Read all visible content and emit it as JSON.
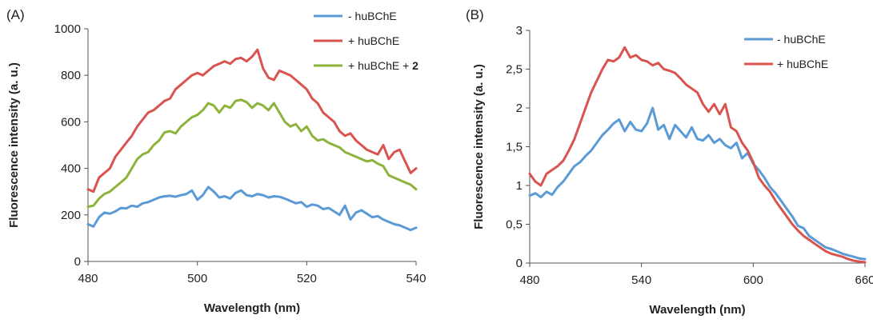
{
  "chart_data": [
    {
      "type": "line",
      "panel_label": "(A)",
      "xlabel": "Wavelength (nm)",
      "ylabel": "Fluorescence intensity (a. u.)",
      "xlim": [
        480,
        540
      ],
      "ylim": [
        0,
        1000
      ],
      "x_ticks": [
        "480",
        "500",
        "520",
        "540"
      ],
      "y_ticks": [
        "0",
        "200",
        "400",
        "600",
        "800",
        "1000"
      ],
      "legend_position": "top-right",
      "series": [
        {
          "name": "- huBChE",
          "color": "#5b9bd5",
          "x": [
            480,
            481,
            482,
            483,
            484,
            485,
            486,
            487,
            488,
            489,
            490,
            491,
            492,
            493,
            494,
            495,
            496,
            497,
            498,
            499,
            500,
            501,
            502,
            503,
            504,
            505,
            506,
            507,
            508,
            509,
            510,
            511,
            512,
            513,
            514,
            515,
            516,
            517,
            518,
            519,
            520,
            521,
            522,
            523,
            524,
            525,
            526,
            527,
            528,
            529,
            530,
            531,
            532,
            533,
            534,
            535,
            536,
            537,
            538,
            539,
            540
          ],
          "y": [
            160,
            150,
            190,
            210,
            205,
            215,
            230,
            228,
            240,
            235,
            250,
            255,
            265,
            275,
            280,
            282,
            278,
            285,
            290,
            305,
            265,
            285,
            320,
            300,
            275,
            280,
            270,
            295,
            305,
            285,
            280,
            290,
            285,
            275,
            280,
            278,
            270,
            260,
            250,
            255,
            235,
            245,
            240,
            225,
            230,
            215,
            200,
            240,
            180,
            210,
            220,
            205,
            190,
            195,
            180,
            170,
            160,
            155,
            145,
            135,
            145
          ]
        },
        {
          "name": "+ huBChE",
          "color": "#d9534f",
          "x": [
            480,
            481,
            482,
            483,
            484,
            485,
            486,
            487,
            488,
            489,
            490,
            491,
            492,
            493,
            494,
            495,
            496,
            497,
            498,
            499,
            500,
            501,
            502,
            503,
            504,
            505,
            506,
            507,
            508,
            509,
            510,
            511,
            512,
            513,
            514,
            515,
            516,
            517,
            518,
            519,
            520,
            521,
            522,
            523,
            524,
            525,
            526,
            527,
            528,
            529,
            530,
            531,
            532,
            533,
            534,
            535,
            536,
            537,
            538,
            539,
            540
          ],
          "y": [
            310,
            300,
            360,
            380,
            400,
            450,
            480,
            510,
            540,
            580,
            610,
            640,
            650,
            670,
            690,
            700,
            740,
            760,
            780,
            800,
            810,
            800,
            820,
            840,
            850,
            860,
            850,
            870,
            875,
            860,
            880,
            910,
            830,
            790,
            780,
            820,
            810,
            800,
            780,
            760,
            740,
            700,
            680,
            640,
            620,
            600,
            560,
            540,
            550,
            520,
            500,
            480,
            470,
            460,
            500,
            440,
            470,
            480,
            430,
            380,
            400
          ]
        },
        {
          "name": "+ huBChE + 2",
          "color": "#8db33c",
          "x": [
            480,
            481,
            482,
            483,
            484,
            485,
            486,
            487,
            488,
            489,
            490,
            491,
            492,
            493,
            494,
            495,
            496,
            497,
            498,
            499,
            500,
            501,
            502,
            503,
            504,
            505,
            506,
            507,
            508,
            509,
            510,
            511,
            512,
            513,
            514,
            515,
            516,
            517,
            518,
            519,
            520,
            521,
            522,
            523,
            524,
            525,
            526,
            527,
            528,
            529,
            530,
            531,
            532,
            533,
            534,
            535,
            536,
            537,
            538,
            539,
            540
          ],
          "y": [
            235,
            240,
            270,
            290,
            300,
            320,
            340,
            360,
            400,
            440,
            460,
            470,
            500,
            520,
            555,
            560,
            550,
            580,
            600,
            620,
            630,
            650,
            680,
            670,
            640,
            670,
            660,
            690,
            695,
            685,
            660,
            680,
            670,
            650,
            680,
            640,
            600,
            580,
            590,
            560,
            580,
            540,
            520,
            525,
            510,
            500,
            490,
            470,
            460,
            450,
            440,
            430,
            435,
            420,
            410,
            370,
            360,
            350,
            340,
            330,
            310
          ]
        }
      ]
    },
    {
      "type": "line",
      "panel_label": "(B)",
      "xlabel": "Wavelength (nm)",
      "ylabel": "Fluorescence intensity (a. u.)",
      "xlim": [
        480,
        660
      ],
      "ylim": [
        0,
        3
      ],
      "x_ticks": [
        "480",
        "540",
        "600",
        "660"
      ],
      "y_ticks": [
        "0",
        "0,5",
        "1",
        "1,5",
        "2",
        "2,5",
        "3"
      ],
      "legend_position": "top-right",
      "series": [
        {
          "name": "- huBChE",
          "color": "#5b9bd5",
          "x": [
            480,
            483,
            486,
            489,
            492,
            495,
            498,
            501,
            504,
            507,
            510,
            513,
            516,
            519,
            522,
            525,
            528,
            531,
            534,
            537,
            540,
            543,
            546,
            549,
            552,
            555,
            558,
            561,
            564,
            567,
            570,
            573,
            576,
            579,
            582,
            585,
            588,
            591,
            594,
            597,
            600,
            603,
            606,
            609,
            612,
            615,
            618,
            621,
            624,
            627,
            630,
            633,
            636,
            639,
            642,
            645,
            648,
            651,
            654,
            657,
            660
          ],
          "y": [
            0.87,
            0.9,
            0.85,
            0.92,
            0.88,
            0.98,
            1.05,
            1.15,
            1.25,
            1.3,
            1.38,
            1.45,
            1.55,
            1.65,
            1.72,
            1.8,
            1.85,
            1.7,
            1.82,
            1.72,
            1.7,
            1.8,
            2.0,
            1.72,
            1.78,
            1.6,
            1.78,
            1.7,
            1.62,
            1.75,
            1.6,
            1.58,
            1.65,
            1.55,
            1.6,
            1.52,
            1.48,
            1.55,
            1.35,
            1.42,
            1.28,
            1.2,
            1.1,
            0.98,
            0.9,
            0.8,
            0.7,
            0.6,
            0.48,
            0.45,
            0.35,
            0.3,
            0.25,
            0.2,
            0.18,
            0.15,
            0.12,
            0.1,
            0.08,
            0.06,
            0.05
          ]
        },
        {
          "name": "+ huBChE",
          "color": "#d9534f",
          "x": [
            480,
            483,
            486,
            489,
            492,
            495,
            498,
            501,
            504,
            507,
            510,
            513,
            516,
            519,
            522,
            525,
            528,
            531,
            534,
            537,
            540,
            543,
            546,
            549,
            552,
            555,
            558,
            561,
            564,
            567,
            570,
            573,
            576,
            579,
            582,
            585,
            588,
            591,
            594,
            597,
            600,
            603,
            606,
            609,
            612,
            615,
            618,
            621,
            624,
            627,
            630,
            633,
            636,
            639,
            642,
            645,
            648,
            651,
            654,
            657,
            660
          ],
          "y": [
            1.15,
            1.05,
            1.0,
            1.15,
            1.2,
            1.25,
            1.32,
            1.45,
            1.6,
            1.8,
            2.0,
            2.2,
            2.35,
            2.5,
            2.62,
            2.6,
            2.65,
            2.78,
            2.65,
            2.68,
            2.62,
            2.6,
            2.55,
            2.58,
            2.5,
            2.48,
            2.45,
            2.38,
            2.3,
            2.25,
            2.2,
            2.05,
            1.95,
            2.05,
            1.92,
            2.05,
            1.75,
            1.7,
            1.55,
            1.45,
            1.3,
            1.1,
            1.0,
            0.92,
            0.8,
            0.7,
            0.6,
            0.5,
            0.42,
            0.35,
            0.3,
            0.25,
            0.2,
            0.15,
            0.12,
            0.1,
            0.08,
            0.05,
            0.03,
            0.02,
            0.01
          ]
        }
      ]
    }
  ]
}
